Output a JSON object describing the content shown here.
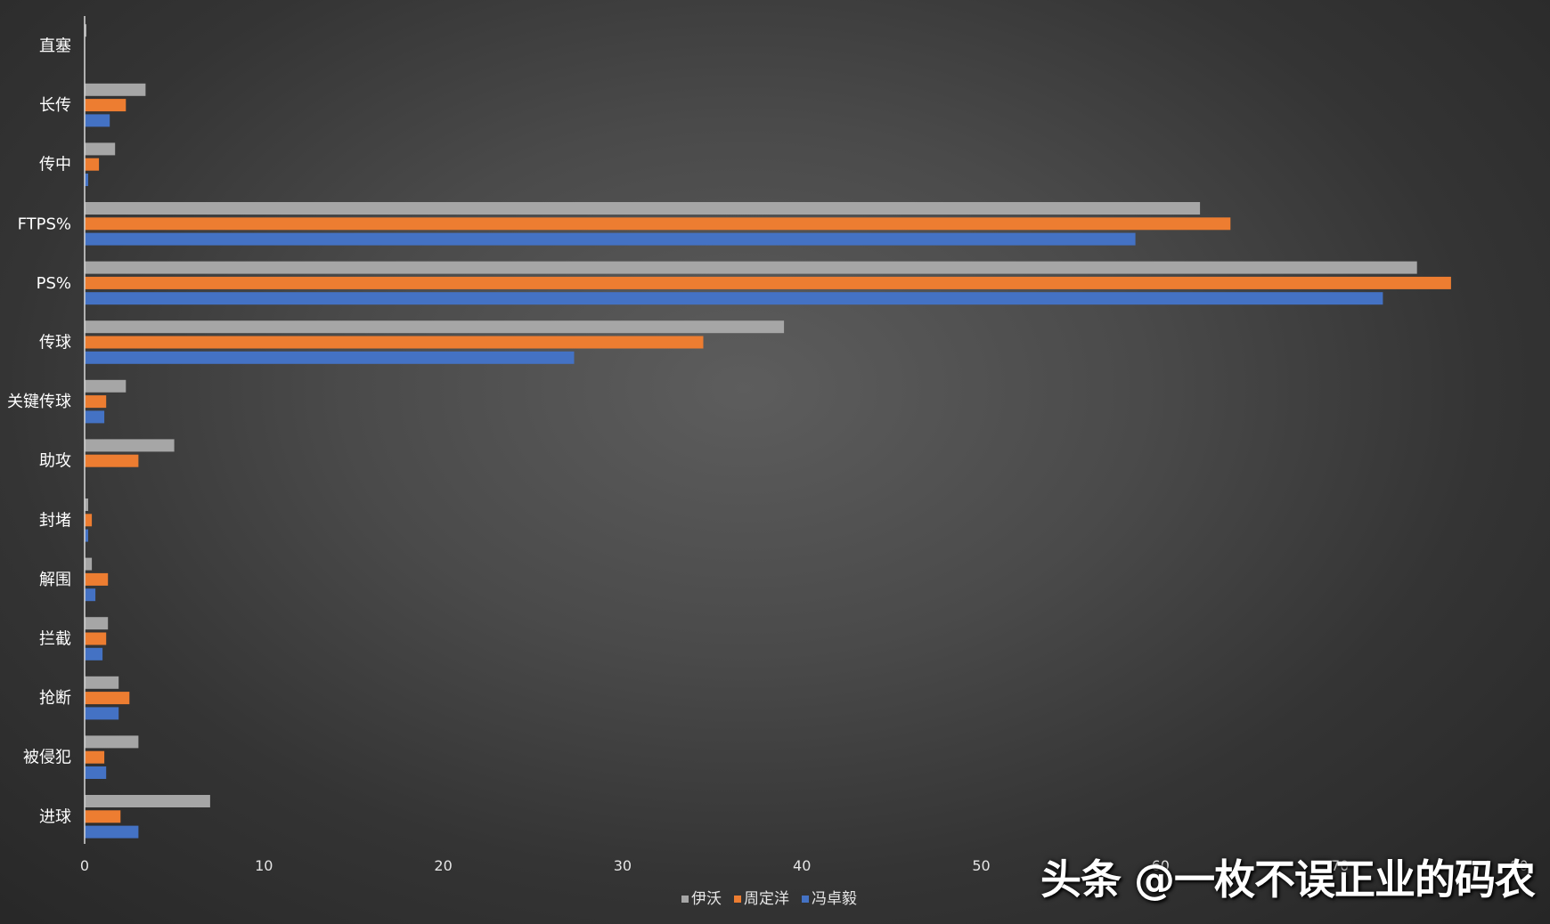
{
  "chart_data": {
    "type": "bar",
    "orientation": "horizontal",
    "categories": [
      "直塞",
      "长传",
      "传中",
      "FTPS%",
      "PS%",
      "传球",
      "关键传球",
      "助攻",
      "封堵",
      "解围",
      "拦截",
      "抢断",
      "被侵犯",
      "进球"
    ],
    "series": [
      {
        "name": "伊沃",
        "color": "#a6a6a6",
        "values": [
          0.1,
          3.4,
          1.7,
          62.2,
          74.3,
          39.0,
          2.3,
          5.0,
          0.2,
          0.4,
          1.3,
          1.9,
          3.0,
          7.0
        ]
      },
      {
        "name": "周定洋",
        "color": "#ed7d31",
        "values": [
          0,
          2.3,
          0.8,
          63.9,
          76.2,
          34.5,
          1.2,
          3.0,
          0.4,
          1.3,
          1.2,
          2.5,
          1.1,
          2.0
        ]
      },
      {
        "name": "冯卓毅",
        "color": "#4472c4",
        "values": [
          0,
          1.4,
          0.2,
          58.6,
          72.4,
          27.3,
          1.1,
          0,
          0.2,
          0.6,
          1.0,
          1.9,
          1.2,
          3.0
        ]
      }
    ],
    "xlim": [
      0,
      80
    ],
    "xticks": [
      "0",
      "10",
      "20",
      "30",
      "40",
      "50",
      "60",
      "70",
      "80"
    ],
    "grid": false,
    "legend_position": "bottom"
  },
  "watermark": "头条 @一枚不误正业的码农"
}
